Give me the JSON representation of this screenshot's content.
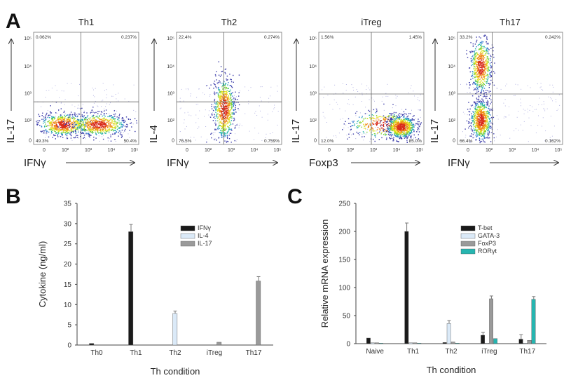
{
  "panel_labels": {
    "a": "A",
    "b": "B",
    "c": "C"
  },
  "chart_data": [
    {
      "type": "scatter",
      "subtype": "flow-cytometry-density",
      "panel": "A",
      "x_tick_labels": [
        "0",
        "10²",
        "10³",
        "10⁴",
        "10⁵"
      ],
      "y_tick_labels": [
        "10⁵",
        "10⁴",
        "10³",
        "10²",
        "0"
      ],
      "plots": [
        {
          "title": "Th1",
          "xlabel": "IFNγ",
          "ylabel": "IL-17",
          "quadrants": {
            "ul": "0.062%",
            "ur": "0.237%",
            "ll": "49.3%",
            "lr": "50.4%"
          }
        },
        {
          "title": "Th2",
          "xlabel": "IFNγ",
          "ylabel": "IL-4",
          "quadrants": {
            "ul": "22.4%",
            "ur": "0.274%",
            "ll": "76.5%",
            "lr": "0.759%"
          }
        },
        {
          "title": "iTreg",
          "xlabel": "Foxp3",
          "ylabel": "IL-17",
          "quadrants": {
            "ul": "1.56%",
            "ur": "1.45%",
            "ll": "12.0%",
            "lr": "85.0%"
          }
        },
        {
          "title": "Th17",
          "xlabel": "IFNγ",
          "ylabel": "IL-17",
          "quadrants": {
            "ul": "33.2%",
            "ur": "0.242%",
            "ll": "66.4%",
            "lr": "0.162%"
          }
        }
      ]
    },
    {
      "type": "bar",
      "panel": "B",
      "categories": [
        "Th0",
        "Th1",
        "Th2",
        "iTreg",
        "Th17"
      ],
      "series": [
        {
          "name": "IFNγ",
          "color": "#1a1a1a",
          "values": [
            0.4,
            28,
            0,
            0,
            0
          ],
          "errors": [
            0,
            1.8,
            0,
            0,
            0
          ]
        },
        {
          "name": "IL-4",
          "color": "#dbeaf8",
          "values": [
            0,
            0,
            7.8,
            0,
            0
          ],
          "errors": [
            0,
            0,
            0.6,
            0,
            0
          ]
        },
        {
          "name": "IL-17",
          "color": "#9a9a9a",
          "values": [
            0,
            0,
            0,
            0.7,
            15.8
          ],
          "errors": [
            0,
            0,
            0,
            0,
            1.1
          ]
        }
      ],
      "xlabel": "Th condition",
      "ylabel": "Cytokine (ng/ml)",
      "ylim": [
        0,
        35
      ],
      "yticks": [
        0,
        5,
        10,
        15,
        20,
        25,
        30,
        35
      ],
      "legend": "top-right"
    },
    {
      "type": "bar",
      "panel": "C",
      "categories": [
        "Naive",
        "Th1",
        "Th2",
        "iTreg",
        "Th17"
      ],
      "series": [
        {
          "name": "T-bet",
          "color": "#1a1a1a",
          "values": [
            10,
            200,
            2,
            15,
            8
          ],
          "errors": [
            0,
            15,
            0,
            5,
            8
          ]
        },
        {
          "name": "GATA-3",
          "color": "#dbeaf8",
          "values": [
            1.5,
            1.5,
            36,
            1,
            1
          ],
          "errors": [
            0,
            0,
            5,
            0,
            0
          ]
        },
        {
          "name": "FoxP3",
          "color": "#9a9a9a",
          "values": [
            1.5,
            1.5,
            3,
            80,
            6
          ],
          "errors": [
            0,
            0,
            0,
            5,
            0
          ]
        },
        {
          "name": "RORγt",
          "color": "#26b5b0",
          "values": [
            1,
            1,
            1,
            9,
            79
          ],
          "errors": [
            0,
            0,
            0,
            0,
            5
          ]
        }
      ],
      "xlabel": "Th condition",
      "ylabel": "Relative mRNA expression",
      "ylim": [
        0,
        250
      ],
      "yticks": [
        0,
        50,
        100,
        150,
        200,
        250
      ],
      "legend": "top-right"
    }
  ]
}
